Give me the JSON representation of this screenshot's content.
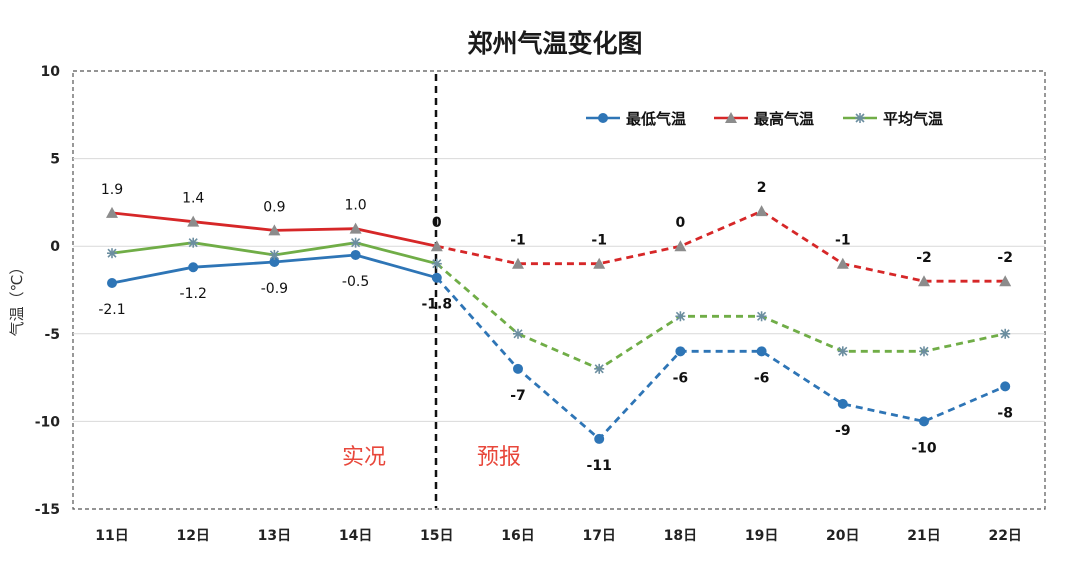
{
  "chart_data": {
    "type": "line",
    "title": "郑州气温变化图",
    "ylabel": "气温（℃）",
    "xlabel": "",
    "categories": [
      "11日",
      "12日",
      "13日",
      "14日",
      "15日",
      "16日",
      "17日",
      "18日",
      "19日",
      "20日",
      "21日",
      "22日"
    ],
    "ylim": [
      -15,
      10
    ],
    "yticks": [
      10,
      5,
      0,
      -5,
      -10,
      -15
    ],
    "grid": true,
    "legend_position": "top-right",
    "split_label_left": "实况",
    "split_label_right": "预报",
    "series": [
      {
        "name": "最低气温",
        "color": "#2e75b6",
        "marker": "circle",
        "values": [
          -2.1,
          -1.2,
          -0.9,
          -0.5,
          -1.8,
          -7,
          -11,
          -6,
          -6,
          -9,
          -10,
          -8
        ],
        "labels": [
          "-2.1",
          "-1.2",
          "-0.9",
          "-0.5",
          "-1.8",
          "-7",
          "-11",
          "-6",
          "-6",
          "-9",
          "-10",
          "-8"
        ]
      },
      {
        "name": "最高气温",
        "color": "#d62728",
        "marker": "triangle",
        "values": [
          1.9,
          1.4,
          0.9,
          1.0,
          0,
          -1,
          -1,
          0,
          2,
          -1,
          -2,
          -2
        ],
        "labels": [
          "1.9",
          "1.4",
          "0.9",
          "1.0",
          "0",
          "-1",
          "-1",
          "0",
          "2",
          "-1",
          "-2",
          "-2"
        ]
      },
      {
        "name": "平均气温",
        "color": "#70ad47",
        "marker": "star",
        "values": [
          -0.4,
          0.2,
          -0.5,
          0.2,
          -1.0,
          -5,
          -7,
          -4,
          -4,
          -6,
          -6,
          -5
        ],
        "labels": []
      }
    ]
  }
}
